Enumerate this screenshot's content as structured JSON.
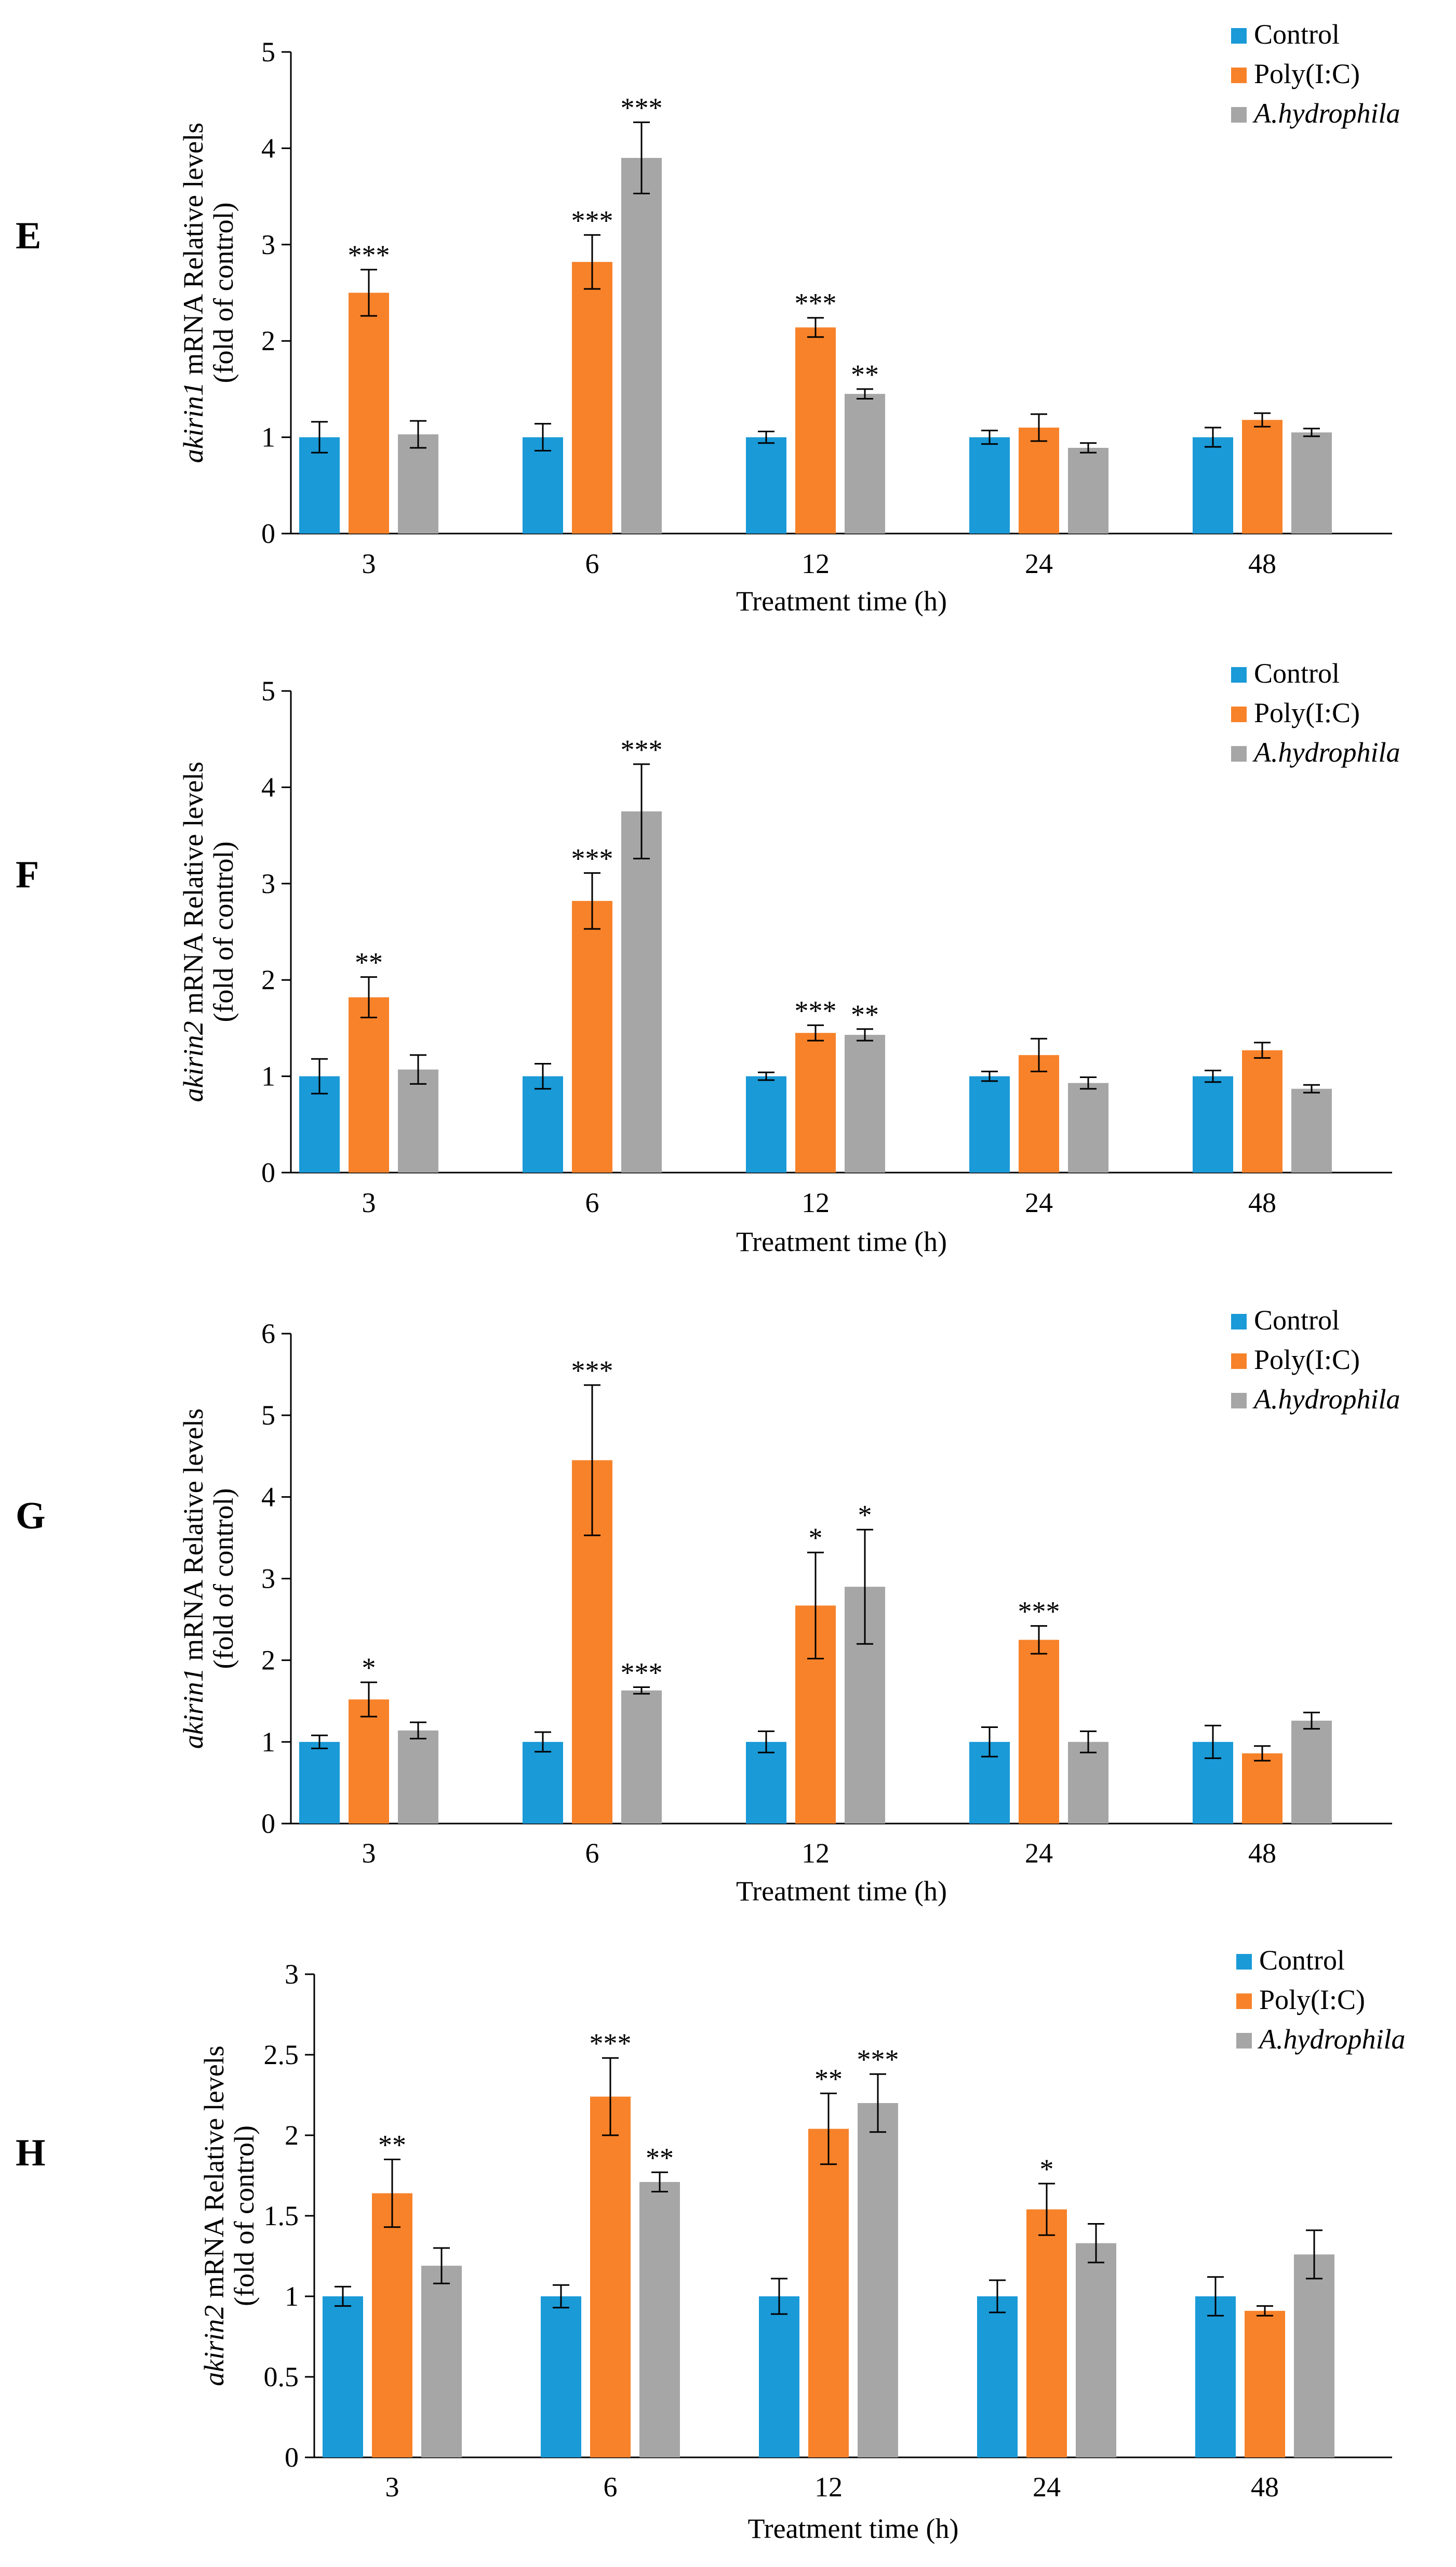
{
  "figure": {
    "x_label": "Treatment time (h)",
    "categories": [
      "3",
      "6",
      "12",
      "24",
      "48"
    ],
    "legend": [
      {
        "name": "Control",
        "italic": false,
        "color": "#1a9ad7"
      },
      {
        "name": "Poly(I:C)",
        "italic": false,
        "color": "#f7822a"
      },
      {
        "name": "A.hydrophila",
        "italic": true,
        "color": "#a6a6a6"
      }
    ]
  },
  "chart_data": [
    {
      "type": "bar",
      "panel": "E",
      "gene": "akirin1",
      "ylabel_rest": " mRNA Relative levels",
      "ylabel_line2": "(fold of control)",
      "xlabel": "Treatment time (h)",
      "categories": [
        "3",
        "6",
        "12",
        "24",
        "48"
      ],
      "ylim": [
        0,
        5
      ],
      "yticks": [
        "0",
        "1",
        "2",
        "3",
        "4",
        "5"
      ],
      "ytick_values": [
        0,
        1,
        2,
        3,
        4,
        5
      ],
      "series": [
        {
          "name": "Control",
          "values": [
            1.0,
            1.0,
            1.0,
            1.0,
            1.0
          ],
          "errors": [
            0.16,
            0.14,
            0.06,
            0.07,
            0.1
          ],
          "sig": [
            "",
            "",
            "",
            "",
            ""
          ]
        },
        {
          "name": "Poly(I:C)",
          "values": [
            2.5,
            2.82,
            2.14,
            1.1,
            1.18
          ],
          "errors": [
            0.24,
            0.28,
            0.1,
            0.14,
            0.07
          ],
          "sig": [
            "***",
            "***",
            "***",
            "",
            ""
          ]
        },
        {
          "name": "A.hydrophila",
          "values": [
            1.03,
            3.9,
            1.45,
            0.89,
            1.05
          ],
          "errors": [
            0.14,
            0.37,
            0.05,
            0.05,
            0.04
          ],
          "sig": [
            "",
            "***",
            "**",
            "",
            ""
          ]
        }
      ]
    },
    {
      "type": "bar",
      "panel": "F",
      "gene": "akirin2",
      "ylabel_rest": " mRNA Relative levels",
      "ylabel_line2": "(fold of control)",
      "xlabel": "Treatment time (h)",
      "categories": [
        "3",
        "6",
        "12",
        "24",
        "48"
      ],
      "ylim": [
        0,
        5
      ],
      "yticks": [
        "0",
        "1",
        "2",
        "3",
        "4",
        "5"
      ],
      "ytick_values": [
        0,
        1,
        2,
        3,
        4,
        5
      ],
      "series": [
        {
          "name": "Control",
          "values": [
            1.0,
            1.0,
            1.0,
            1.0,
            1.0
          ],
          "errors": [
            0.18,
            0.13,
            0.04,
            0.05,
            0.06
          ],
          "sig": [
            "",
            "",
            "",
            "",
            ""
          ]
        },
        {
          "name": "Poly(I:C)",
          "values": [
            1.82,
            2.82,
            1.45,
            1.22,
            1.27
          ],
          "errors": [
            0.21,
            0.29,
            0.08,
            0.17,
            0.08
          ],
          "sig": [
            "**",
            "***",
            "***",
            "",
            ""
          ]
        },
        {
          "name": "A.hydrophila",
          "values": [
            1.07,
            3.75,
            1.43,
            0.93,
            0.87
          ],
          "errors": [
            0.15,
            0.49,
            0.06,
            0.06,
            0.04
          ],
          "sig": [
            "",
            "***",
            "**",
            "",
            ""
          ]
        }
      ]
    },
    {
      "type": "bar",
      "panel": "G",
      "gene": "akirin1",
      "ylabel_rest": " mRNA Relative levels",
      "ylabel_line2": "(fold of control)",
      "xlabel": "Treatment time (h)",
      "categories": [
        "3",
        "6",
        "12",
        "24",
        "48"
      ],
      "ylim": [
        0,
        6
      ],
      "yticks": [
        "0",
        "1",
        "2",
        "3",
        "4",
        "5",
        "6"
      ],
      "ytick_values": [
        0,
        1,
        2,
        3,
        4,
        5,
        6
      ],
      "series": [
        {
          "name": "Control",
          "values": [
            1.0,
            1.0,
            1.0,
            1.0,
            1.0
          ],
          "errors": [
            0.08,
            0.12,
            0.13,
            0.18,
            0.2
          ],
          "sig": [
            "",
            "",
            "",
            "",
            ""
          ]
        },
        {
          "name": "Poly(I:C)",
          "values": [
            1.52,
            4.45,
            2.67,
            2.25,
            0.86
          ],
          "errors": [
            0.21,
            0.92,
            0.65,
            0.17,
            0.09
          ],
          "sig": [
            "*",
            "***",
            "*",
            "***",
            ""
          ]
        },
        {
          "name": "A.hydrophila",
          "values": [
            1.14,
            1.63,
            2.9,
            1.0,
            1.26
          ],
          "errors": [
            0.1,
            0.04,
            0.7,
            0.13,
            0.1
          ],
          "sig": [
            "",
            "***",
            "*",
            "",
            ""
          ]
        }
      ]
    },
    {
      "type": "bar",
      "panel": "H",
      "gene": "akirin2",
      "ylabel_rest": " mRNA Relative levels",
      "ylabel_line2": "(fold of control)",
      "xlabel": "Treatment time (h)",
      "categories": [
        "3",
        "6",
        "12",
        "24",
        "48"
      ],
      "ylim": [
        0,
        3
      ],
      "yticks": [
        "0",
        "0.5",
        "1",
        "1.5",
        "2",
        "2.5",
        "3"
      ],
      "ytick_values": [
        0,
        0.5,
        1,
        1.5,
        2,
        2.5,
        3
      ],
      "series": [
        {
          "name": "Control",
          "values": [
            1.0,
            1.0,
            1.0,
            1.0,
            1.0
          ],
          "errors": [
            0.06,
            0.07,
            0.11,
            0.1,
            0.12
          ],
          "sig": [
            "",
            "",
            "",
            "",
            ""
          ]
        },
        {
          "name": "Poly(I:C)",
          "values": [
            1.64,
            2.24,
            2.04,
            1.54,
            0.91
          ],
          "errors": [
            0.21,
            0.24,
            0.22,
            0.16,
            0.03
          ],
          "sig": [
            "**",
            "***",
            "**",
            "*",
            ""
          ]
        },
        {
          "name": "A.hydrophila",
          "values": [
            1.19,
            1.71,
            2.2,
            1.33,
            1.26
          ],
          "errors": [
            0.11,
            0.06,
            0.18,
            0.12,
            0.15
          ],
          "sig": [
            "",
            "**",
            "***",
            "",
            ""
          ]
        }
      ]
    }
  ]
}
